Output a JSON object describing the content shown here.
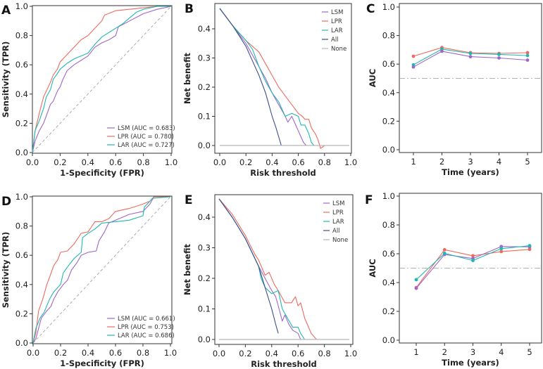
{
  "colors": {
    "LSM": "#a066c8",
    "LPR": "#ee6a5e",
    "LAR": "#20b8b0",
    "All": "#3c4f8a",
    "None": "#b8b8b8",
    "reference": "#999999"
  },
  "chart_data": [
    {
      "panel": "A",
      "type": "line",
      "subtype": "roc",
      "xlabel": "1-Specificity (FPR)",
      "ylabel": "Sensitivity (TPR)",
      "xlim": [
        0,
        1
      ],
      "ylim": [
        0,
        1
      ],
      "xticks": [
        "0.0",
        "0.2",
        "0.4",
        "0.6",
        "0.8",
        "1.0"
      ],
      "yticks": [
        "0.0",
        "0.2",
        "0.4",
        "0.6",
        "0.8",
        "1.0"
      ],
      "legend_position": "bottom-right",
      "reference_line": "diagonal",
      "series": [
        {
          "name": "LSM",
          "legend": "LSM (AUC = 0.683)",
          "auc": 0.683,
          "x": [
            0,
            0.02,
            0.05,
            0.08,
            0.1,
            0.13,
            0.15,
            0.18,
            0.2,
            0.22,
            0.25,
            0.3,
            0.35,
            0.4,
            0.45,
            0.5,
            0.55,
            0.6,
            0.62,
            0.7,
            0.8,
            0.9,
            1.0
          ],
          "y": [
            0,
            0.08,
            0.15,
            0.2,
            0.25,
            0.33,
            0.35,
            0.42,
            0.45,
            0.5,
            0.56,
            0.6,
            0.63,
            0.66,
            0.72,
            0.75,
            0.77,
            0.8,
            0.86,
            0.9,
            0.95,
            0.98,
            1.0
          ]
        },
        {
          "name": "LPR",
          "legend": "LPR (AUC = 0.780)",
          "auc": 0.78,
          "x": [
            0,
            0.02,
            0.05,
            0.08,
            0.1,
            0.13,
            0.15,
            0.18,
            0.2,
            0.25,
            0.3,
            0.35,
            0.4,
            0.45,
            0.5,
            0.52,
            0.6,
            0.7,
            0.8,
            0.9,
            1.0
          ],
          "y": [
            0,
            0.15,
            0.27,
            0.38,
            0.42,
            0.48,
            0.53,
            0.57,
            0.62,
            0.67,
            0.72,
            0.77,
            0.8,
            0.85,
            0.9,
            0.94,
            0.97,
            0.98,
            0.99,
            1.0,
            1.0
          ]
        },
        {
          "name": "LAR",
          "legend": "LAR (AUC = 0.727)",
          "auc": 0.727,
          "x": [
            0,
            0.02,
            0.05,
            0.08,
            0.1,
            0.13,
            0.15,
            0.18,
            0.2,
            0.25,
            0.3,
            0.35,
            0.4,
            0.45,
            0.5,
            0.55,
            0.6,
            0.65,
            0.7,
            0.75,
            0.8,
            0.9,
            1.0
          ],
          "y": [
            0,
            0.15,
            0.22,
            0.3,
            0.38,
            0.43,
            0.5,
            0.54,
            0.57,
            0.61,
            0.64,
            0.66,
            0.68,
            0.74,
            0.79,
            0.82,
            0.85,
            0.88,
            0.92,
            0.96,
            0.98,
            1.0,
            1.0
          ]
        }
      ]
    },
    {
      "panel": "B",
      "type": "line",
      "subtype": "decision-curve",
      "xlabel": "Risk threshold",
      "ylabel": "Net benefit",
      "xlim": [
        0,
        1
      ],
      "ylim": [
        -0.02,
        0.47
      ],
      "xticks": [
        "0.0",
        "0.2",
        "0.4",
        "0.6",
        "0.8",
        "1.0"
      ],
      "yticks": [
        "0.0",
        "0.1",
        "0.2",
        "0.3",
        "0.4"
      ],
      "legend_position": "top-right",
      "series": [
        {
          "name": "LSM",
          "x": [
            0,
            0.1,
            0.2,
            0.25,
            0.3,
            0.35,
            0.4,
            0.45,
            0.5,
            0.52,
            0.55,
            0.58,
            0.6,
            0.62,
            0.64,
            0.66
          ],
          "y": [
            0.47,
            0.41,
            0.35,
            0.31,
            0.27,
            0.23,
            0.18,
            0.14,
            0.1,
            0.08,
            0.1,
            0.07,
            0.05,
            0.03,
            0.01,
            0.0
          ]
        },
        {
          "name": "LPR",
          "x": [
            0,
            0.1,
            0.2,
            0.3,
            0.35,
            0.4,
            0.45,
            0.5,
            0.55,
            0.6,
            0.63,
            0.65,
            0.68,
            0.7,
            0.73,
            0.75,
            0.77,
            0.8
          ],
          "y": [
            0.47,
            0.41,
            0.36,
            0.32,
            0.28,
            0.24,
            0.2,
            0.17,
            0.14,
            0.11,
            0.1,
            0.09,
            0.09,
            0.06,
            0.04,
            0.02,
            -0.01,
            0.0
          ]
        },
        {
          "name": "LAR",
          "x": [
            0,
            0.1,
            0.2,
            0.25,
            0.3,
            0.35,
            0.4,
            0.45,
            0.5,
            0.55,
            0.6,
            0.62,
            0.65,
            0.68,
            0.7,
            0.72
          ],
          "y": [
            0.47,
            0.41,
            0.36,
            0.33,
            0.27,
            0.22,
            0.18,
            0.15,
            0.1,
            0.11,
            0.1,
            0.07,
            0.07,
            0.04,
            0.01,
            0.0
          ]
        },
        {
          "name": "All",
          "x": [
            0,
            0.1,
            0.2,
            0.25,
            0.3,
            0.35,
            0.4,
            0.43,
            0.45,
            0.47
          ],
          "y": [
            0.47,
            0.41,
            0.34,
            0.29,
            0.24,
            0.18,
            0.1,
            0.06,
            0.03,
            0.0
          ]
        },
        {
          "name": "None",
          "x": [
            0,
            0.99
          ],
          "y": [
            0,
            0
          ]
        }
      ]
    },
    {
      "panel": "C",
      "type": "line",
      "subtype": "time-dependent-auc",
      "xlabel": "Time (years)",
      "ylabel": "AUC",
      "xlim": [
        0.5,
        5.4
      ],
      "ylim": [
        -0.02,
        1.02
      ],
      "categories": [
        1,
        2,
        3,
        4,
        5
      ],
      "xticks": [
        "1",
        "2",
        "3",
        "4",
        "5"
      ],
      "yticks": [
        "0.0",
        "0.2",
        "0.4",
        "0.6",
        "0.8",
        "1.0"
      ],
      "reference_line": 0.5,
      "series": [
        {
          "name": "LPR",
          "values": [
            0.655,
            0.716,
            0.68,
            0.675,
            0.68
          ]
        },
        {
          "name": "LAR",
          "values": [
            0.595,
            0.705,
            0.675,
            0.668,
            0.66
          ]
        },
        {
          "name": "LSM",
          "values": [
            0.58,
            0.69,
            0.652,
            0.643,
            0.628
          ]
        }
      ]
    },
    {
      "panel": "D",
      "type": "line",
      "subtype": "roc",
      "xlabel": "1-Specificity (FPR)",
      "ylabel": "Sensitivity (TPR)",
      "xlim": [
        0,
        1
      ],
      "ylim": [
        0,
        1
      ],
      "xticks": [
        "0.0",
        "0.2",
        "0.4",
        "0.6",
        "0.8",
        "1.0"
      ],
      "yticks": [
        "0.0",
        "0.2",
        "0.4",
        "0.6",
        "0.8",
        "1.0"
      ],
      "legend_position": "bottom-right",
      "reference_line": "diagonal",
      "series": [
        {
          "name": "LSM",
          "legend": "LSM (AUC = 0.661)",
          "auc": 0.661,
          "x": [
            0,
            0.02,
            0.04,
            0.06,
            0.1,
            0.13,
            0.15,
            0.18,
            0.22,
            0.25,
            0.28,
            0.32,
            0.35,
            0.4,
            0.46,
            0.48,
            0.52,
            0.55,
            0.6,
            0.7,
            0.8,
            0.85,
            0.88,
            1.0
          ],
          "y": [
            0,
            0.03,
            0.1,
            0.17,
            0.22,
            0.25,
            0.3,
            0.35,
            0.4,
            0.43,
            0.5,
            0.55,
            0.6,
            0.62,
            0.63,
            0.7,
            0.76,
            0.82,
            0.84,
            0.88,
            0.9,
            0.95,
            1.0,
            1.0
          ]
        },
        {
          "name": "LPR",
          "legend": "LPR (AUC = 0.753)",
          "auc": 0.753,
          "x": [
            0,
            0.02,
            0.04,
            0.07,
            0.1,
            0.12,
            0.15,
            0.18,
            0.2,
            0.25,
            0.3,
            0.35,
            0.4,
            0.45,
            0.5,
            0.55,
            0.6,
            0.7,
            0.8,
            0.85,
            0.88,
            0.93,
            1.0
          ],
          "y": [
            0,
            0.07,
            0.22,
            0.3,
            0.4,
            0.45,
            0.53,
            0.57,
            0.62,
            0.63,
            0.68,
            0.75,
            0.76,
            0.83,
            0.83,
            0.85,
            0.9,
            0.92,
            0.95,
            0.97,
            1.0,
            1.0,
            1.0
          ]
        },
        {
          "name": "LAR",
          "legend": "LAR (AUC = 0.686)",
          "auc": 0.686,
          "x": [
            0,
            0.02,
            0.05,
            0.08,
            0.12,
            0.15,
            0.2,
            0.22,
            0.25,
            0.3,
            0.35,
            0.36,
            0.4,
            0.45,
            0.5,
            0.6,
            0.7,
            0.8,
            0.81,
            0.87,
            1.0
          ],
          "y": [
            0,
            0.1,
            0.17,
            0.21,
            0.3,
            0.35,
            0.4,
            0.48,
            0.52,
            0.58,
            0.62,
            0.72,
            0.75,
            0.78,
            0.82,
            0.83,
            0.84,
            0.87,
            0.93,
            0.99,
            1.0
          ]
        }
      ]
    },
    {
      "panel": "E",
      "type": "line",
      "subtype": "decision-curve",
      "xlabel": "Risk threshold",
      "ylabel": "Net benefit",
      "xlim": [
        0,
        1
      ],
      "ylim": [
        -0.02,
        0.46
      ],
      "xticks": [
        "0.0",
        "0.2",
        "0.4",
        "0.6",
        "0.8",
        "1.0"
      ],
      "yticks": [
        "0.0",
        "0.1",
        "0.2",
        "0.3",
        "0.4"
      ],
      "legend_position": "top-right",
      "series": [
        {
          "name": "LSM",
          "x": [
            0,
            0.1,
            0.2,
            0.3,
            0.35,
            0.4,
            0.43,
            0.45,
            0.48,
            0.5,
            0.53,
            0.56,
            0.6,
            0.62
          ],
          "y": [
            0.46,
            0.4,
            0.33,
            0.24,
            0.2,
            0.16,
            0.14,
            0.11,
            0.06,
            0.08,
            0.05,
            0.03,
            0.02,
            0.0
          ]
        },
        {
          "name": "LPR",
          "x": [
            0,
            0.1,
            0.2,
            0.27,
            0.3,
            0.35,
            0.38,
            0.42,
            0.45,
            0.5,
            0.55,
            0.58,
            0.6,
            0.62,
            0.65,
            0.7,
            0.72,
            0.74
          ],
          "y": [
            0.46,
            0.41,
            0.34,
            0.28,
            0.26,
            0.21,
            0.22,
            0.18,
            0.16,
            0.12,
            0.12,
            0.14,
            0.11,
            0.12,
            0.07,
            0.02,
            0.01,
            0.0
          ]
        },
        {
          "name": "LAR",
          "x": [
            0,
            0.1,
            0.2,
            0.3,
            0.32,
            0.35,
            0.4,
            0.45,
            0.48,
            0.52,
            0.56,
            0.6,
            0.62,
            0.65
          ],
          "y": [
            0.46,
            0.4,
            0.33,
            0.24,
            0.2,
            0.17,
            0.15,
            0.16,
            0.1,
            0.07,
            0.04,
            0.04,
            0.02,
            0.0
          ]
        },
        {
          "name": "All",
          "x": [
            0,
            0.1,
            0.2,
            0.3,
            0.35,
            0.4,
            0.43,
            0.45
          ],
          "y": [
            0.46,
            0.4,
            0.33,
            0.24,
            0.17,
            0.1,
            0.05,
            0.02
          ]
        },
        {
          "name": "None",
          "x": [
            0,
            0.99
          ],
          "y": [
            0,
            0
          ]
        }
      ]
    },
    {
      "panel": "F",
      "type": "line",
      "subtype": "time-dependent-auc",
      "xlabel": "Time (years)",
      "ylabel": "AUC",
      "xlim": [
        0.5,
        5.4
      ],
      "ylim": [
        -0.02,
        1.02
      ],
      "categories": [
        1,
        2,
        3,
        4,
        5
      ],
      "xticks": [
        "1",
        "2",
        "3",
        "4",
        "5"
      ],
      "yticks": [
        "0.0",
        "0.2",
        "0.4",
        "0.6",
        "0.8",
        "1.0"
      ],
      "reference_line": 0.5,
      "series": [
        {
          "name": "LPR",
          "values": [
            0.365,
            0.628,
            0.586,
            0.615,
            0.63
          ]
        },
        {
          "name": "LSM",
          "values": [
            0.36,
            0.595,
            0.567,
            0.65,
            0.648
          ]
        },
        {
          "name": "LAR",
          "values": [
            0.42,
            0.603,
            0.553,
            0.635,
            0.656
          ]
        }
      ]
    }
  ]
}
